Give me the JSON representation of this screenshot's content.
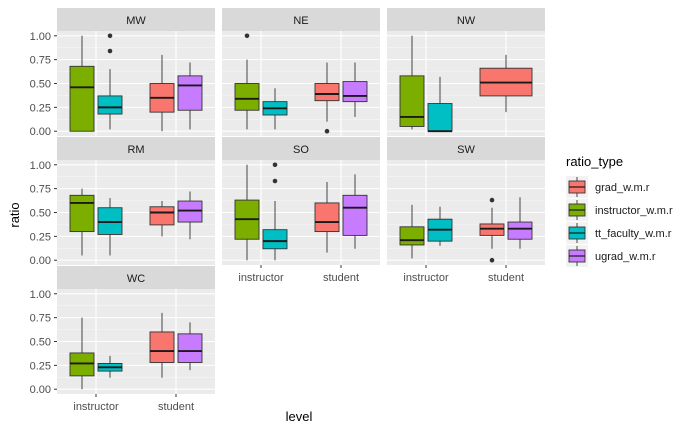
{
  "chart_data": {
    "type": "boxplot",
    "facet_variable": "region",
    "x_label": "level",
    "y_label": "ratio",
    "legend_title": "ratio_type",
    "legend_position": "right",
    "grid": true,
    "ylim": [
      -0.05,
      1.05
    ],
    "y_ticks": [
      0.0,
      0.25,
      0.5,
      0.75,
      1.0
    ],
    "y_tick_labels": [
      "0.00",
      "0.25",
      "0.50",
      "0.75",
      "1.00"
    ],
    "x_categories": [
      "instructor",
      "student"
    ],
    "series": [
      {
        "name": "grad_w.m.r",
        "color": "#F8766D",
        "level": "student"
      },
      {
        "name": "instructor_w.m.r",
        "color": "#7CAE00",
        "level": "instructor"
      },
      {
        "name": "tt_faculty_w.m.r",
        "color": "#00BFC4",
        "level": "instructor"
      },
      {
        "name": "ugrad_w.m.r",
        "color": "#C77CFF",
        "level": "student"
      }
    ],
    "panels": [
      {
        "title": "MW",
        "boxes": [
          {
            "series": "instructor_w.m.r",
            "min": 0.0,
            "q1": 0.0,
            "median": 0.46,
            "q3": 0.68,
            "max": 1.0,
            "outliers": []
          },
          {
            "series": "tt_faculty_w.m.r",
            "min": 0.02,
            "q1": 0.18,
            "median": 0.25,
            "q3": 0.37,
            "max": 0.65,
            "outliers": [
              1.0,
              0.84
            ]
          },
          {
            "series": "grad_w.m.r",
            "min": 0.0,
            "q1": 0.2,
            "median": 0.35,
            "q3": 0.5,
            "max": 0.8,
            "outliers": []
          },
          {
            "series": "ugrad_w.m.r",
            "min": 0.02,
            "q1": 0.22,
            "median": 0.48,
            "q3": 0.58,
            "max": 0.72,
            "outliers": []
          }
        ]
      },
      {
        "title": "NE",
        "boxes": [
          {
            "series": "instructor_w.m.r",
            "min": 0.02,
            "q1": 0.22,
            "median": 0.34,
            "q3": 0.5,
            "max": 0.75,
            "outliers": [
              1.0
            ]
          },
          {
            "series": "tt_faculty_w.m.r",
            "min": 0.02,
            "q1": 0.17,
            "median": 0.24,
            "q3": 0.31,
            "max": 0.45,
            "outliers": []
          },
          {
            "series": "grad_w.m.r",
            "min": 0.1,
            "q1": 0.32,
            "median": 0.39,
            "q3": 0.5,
            "max": 0.72,
            "outliers": [
              0.0
            ]
          },
          {
            "series": "ugrad_w.m.r",
            "min": 0.15,
            "q1": 0.31,
            "median": 0.37,
            "q3": 0.52,
            "max": 0.72,
            "outliers": []
          }
        ]
      },
      {
        "title": "NW",
        "boxes": [
          {
            "series": "instructor_w.m.r",
            "min": 0.02,
            "q1": 0.05,
            "median": 0.15,
            "q3": 0.58,
            "max": 1.0,
            "outliers": []
          },
          {
            "series": "tt_faculty_w.m.r",
            "min": 0.0,
            "q1": 0.0,
            "median": 0.0,
            "q3": 0.29,
            "max": 0.57,
            "outliers": []
          },
          {
            "series": "grad_w.m.r",
            "min": 0.2,
            "q1": 0.37,
            "median": 0.51,
            "q3": 0.66,
            "max": 0.8,
            "outliers": []
          }
        ]
      },
      {
        "title": "RM",
        "boxes": [
          {
            "series": "instructor_w.m.r",
            "min": 0.05,
            "q1": 0.3,
            "median": 0.6,
            "q3": 0.68,
            "max": 0.75,
            "outliers": []
          },
          {
            "series": "tt_faculty_w.m.r",
            "min": 0.05,
            "q1": 0.27,
            "median": 0.4,
            "q3": 0.55,
            "max": 0.65,
            "outliers": []
          },
          {
            "series": "grad_w.m.r",
            "min": 0.25,
            "q1": 0.37,
            "median": 0.5,
            "q3": 0.56,
            "max": 0.62,
            "outliers": []
          },
          {
            "series": "ugrad_w.m.r",
            "min": 0.22,
            "q1": 0.4,
            "median": 0.52,
            "q3": 0.62,
            "max": 0.72,
            "outliers": []
          }
        ]
      },
      {
        "title": "SO",
        "boxes": [
          {
            "series": "instructor_w.m.r",
            "min": 0.0,
            "q1": 0.22,
            "median": 0.43,
            "q3": 0.63,
            "max": 1.0,
            "outliers": []
          },
          {
            "series": "tt_faculty_w.m.r",
            "min": 0.0,
            "q1": 0.12,
            "median": 0.2,
            "q3": 0.32,
            "max": 0.62,
            "outliers": [
              1.0,
              0.83
            ]
          },
          {
            "series": "grad_w.m.r",
            "min": 0.08,
            "q1": 0.3,
            "median": 0.4,
            "q3": 0.6,
            "max": 0.82,
            "outliers": []
          },
          {
            "series": "ugrad_w.m.r",
            "min": 0.12,
            "q1": 0.26,
            "median": 0.55,
            "q3": 0.68,
            "max": 0.9,
            "outliers": []
          }
        ]
      },
      {
        "title": "SW",
        "boxes": [
          {
            "series": "instructor_w.m.r",
            "min": 0.02,
            "q1": 0.16,
            "median": 0.21,
            "q3": 0.35,
            "max": 0.58,
            "outliers": []
          },
          {
            "series": "tt_faculty_w.m.r",
            "min": 0.15,
            "q1": 0.2,
            "median": 0.32,
            "q3": 0.43,
            "max": 0.56,
            "outliers": []
          },
          {
            "series": "grad_w.m.r",
            "min": 0.12,
            "q1": 0.26,
            "median": 0.33,
            "q3": 0.38,
            "max": 0.55,
            "outliers": [
              0.63,
              0.0
            ]
          },
          {
            "series": "ugrad_w.m.r",
            "min": 0.12,
            "q1": 0.22,
            "median": 0.33,
            "q3": 0.4,
            "max": 0.66,
            "outliers": []
          }
        ]
      },
      {
        "title": "WC",
        "boxes": [
          {
            "series": "instructor_w.m.r",
            "min": 0.0,
            "q1": 0.14,
            "median": 0.27,
            "q3": 0.38,
            "max": 0.75,
            "outliers": []
          },
          {
            "series": "tt_faculty_w.m.r",
            "min": 0.12,
            "q1": 0.19,
            "median": 0.23,
            "q3": 0.27,
            "max": 0.35,
            "outliers": []
          },
          {
            "series": "grad_w.m.r",
            "min": 0.12,
            "q1": 0.28,
            "median": 0.4,
            "q3": 0.6,
            "max": 0.8,
            "outliers": []
          },
          {
            "series": "ugrad_w.m.r",
            "min": 0.2,
            "q1": 0.28,
            "median": 0.4,
            "q3": 0.58,
            "max": 0.7,
            "outliers": []
          }
        ]
      }
    ]
  }
}
